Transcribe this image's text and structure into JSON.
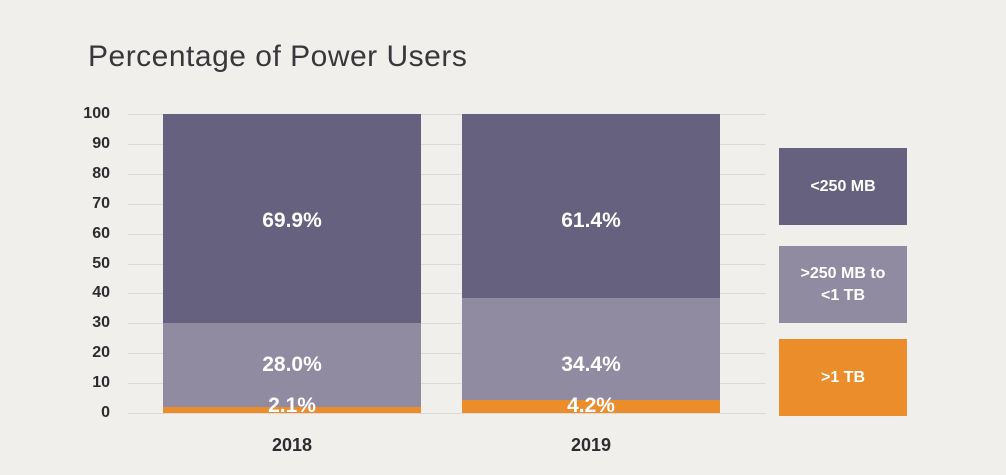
{
  "title": "Percentage of Power Users",
  "colors": {
    "background": "#f1efec",
    "dark_purple": "#66617f",
    "light_purple": "#918ba2",
    "orange": "#ec8d2c",
    "gridline": "#dcdad8",
    "axis_text": "#2e2c2f",
    "value_label_text": "#ffffff"
  },
  "chart_data": {
    "type": "bar",
    "stacked": true,
    "title": "Percentage of Power Users",
    "categories": [
      "2018",
      "2019"
    ],
    "series": [
      {
        "name": "<250 MB",
        "color": "#66617f",
        "values": [
          69.9,
          61.4
        ],
        "labels": [
          "69.9%",
          "61.4%"
        ]
      },
      {
        "name": ">250 MB to <1 TB",
        "color": "#918ba2",
        "values": [
          28.0,
          34.4
        ],
        "labels": [
          "28.0%",
          "34.4%"
        ]
      },
      {
        "name": ">1 TB",
        "color": "#ec8d2c",
        "values": [
          2.1,
          4.2
        ],
        "labels": [
          "2.1%",
          "4.2%"
        ]
      }
    ],
    "xlabel": "",
    "ylabel": "",
    "ylim": [
      0,
      100
    ],
    "yticks": [
      100,
      90,
      80,
      70,
      60,
      50,
      40,
      30,
      20,
      10,
      0
    ],
    "grid": true,
    "legend_position": "right"
  },
  "legend": {
    "items": [
      {
        "label": "<250 MB",
        "color": "#66617f"
      },
      {
        "label": ">250 MB to\n<1 TB",
        "color": "#918ba2"
      },
      {
        "label": ">1 TB",
        "color": "#ec8d2c"
      }
    ]
  }
}
